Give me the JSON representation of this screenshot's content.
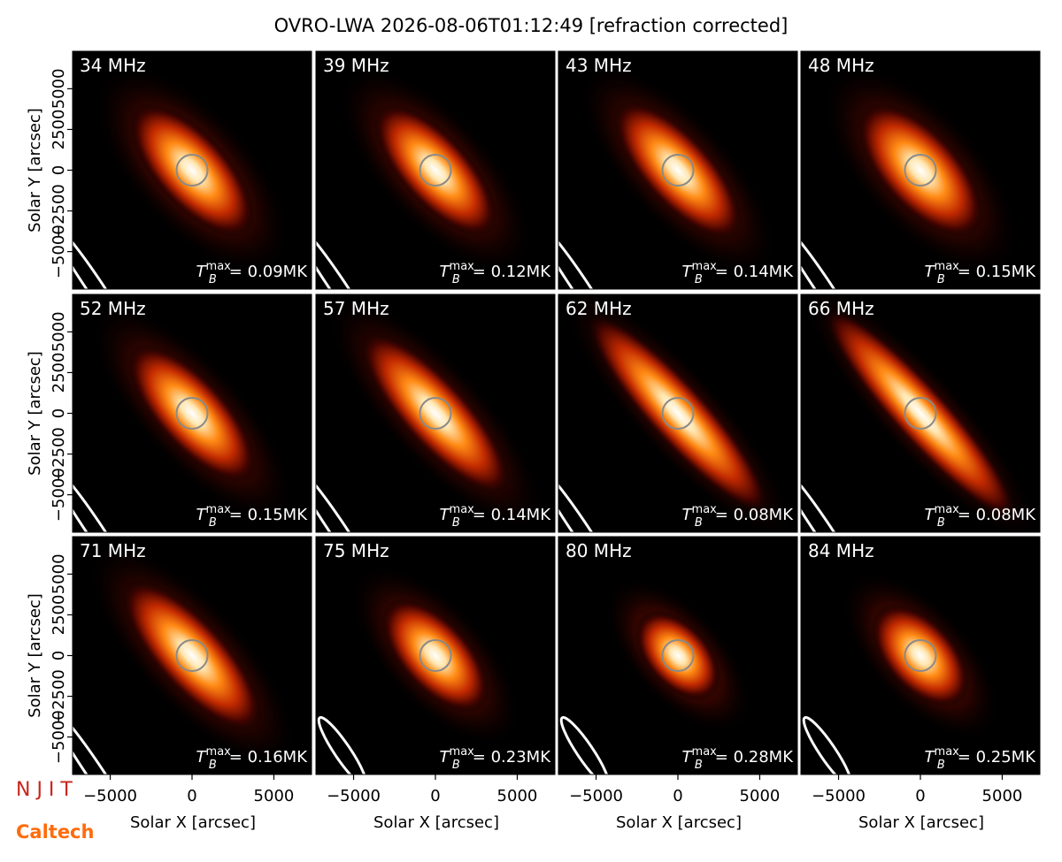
{
  "chart_data": {
    "type": "image-grid",
    "title": "OVRO-LWA 2026-08-06T01:12:49 [refraction corrected]",
    "xlabel": "Solar X [arcsec]",
    "ylabel": "Solar Y [arcsec]",
    "xlim": [
      -7300,
      7300
    ],
    "ylim": [
      -7300,
      7300
    ],
    "xticks": [
      {
        "value": -5000,
        "label": "−5000"
      },
      0,
      5000
    ],
    "yticks": [
      {
        "value": -5000,
        "label": "−5000"
      },
      {
        "value": -2500,
        "label": "−2500"
      },
      0,
      2500,
      5000
    ],
    "tb_symbol": "T",
    "tb_sub": "B",
    "tb_sup": "max",
    "panels": [
      {
        "label": "34 MHz",
        "tb": "= 0.09MK"
      },
      {
        "label": "39 MHz",
        "tb": "= 0.12MK"
      },
      {
        "label": "43 MHz",
        "tb": "= 0.14MK"
      },
      {
        "label": "48 MHz",
        "tb": "= 0.15MK"
      },
      {
        "label": "52 MHz",
        "tb": "= 0.15MK"
      },
      {
        "label": "57 MHz",
        "tb": "= 0.14MK"
      },
      {
        "label": "62 MHz",
        "tb": "= 0.08MK"
      },
      {
        "label": "66 MHz",
        "tb": "= 0.08MK"
      },
      {
        "label": "71 MHz",
        "tb": "= 0.16MK"
      },
      {
        "label": "75 MHz",
        "tb": "= 0.23MK"
      },
      {
        "label": "80 MHz",
        "tb": "= 0.28MK"
      },
      {
        "label": "84 MHz",
        "tb": "= 0.25MK"
      }
    ],
    "logos": {
      "njit": "N J I T",
      "caltech": "Caltech"
    }
  }
}
